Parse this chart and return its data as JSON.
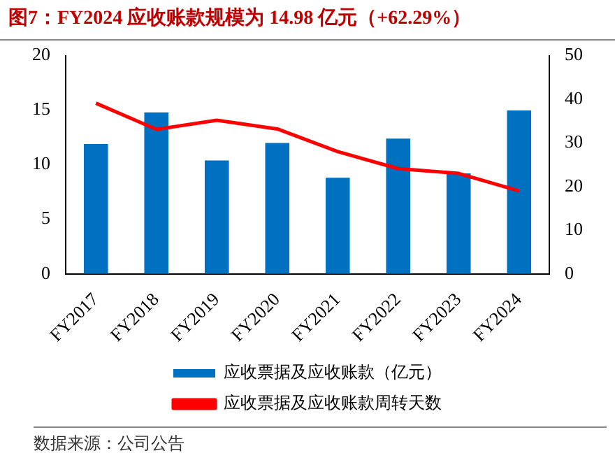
{
  "chart_data": {
    "type": "bar",
    "title": "图7：FY2024 应收账款规模为 14.98 亿元（+62.29%）",
    "categories": [
      "FY2017",
      "FY2018",
      "FY2019",
      "FY2020",
      "FY2021",
      "FY2022",
      "FY2023",
      "FY2024"
    ],
    "series": [
      {
        "name": "应收票据及应收账款（亿元）",
        "color": "#0070c0",
        "values": [
          11.9,
          14.8,
          10.4,
          12.0,
          8.8,
          12.4,
          9.2,
          14.98
        ]
      },
      {
        "name": "应收票据及应收账款周转天数",
        "type": "line",
        "axis": "y2",
        "color": "#ff0000",
        "values": [
          39.1,
          33.1,
          35.2,
          33.2,
          28.0,
          24.1,
          23.0,
          19.0
        ]
      }
    ],
    "ylim": [
      0,
      20
    ],
    "yticks": [
      0,
      5,
      10,
      15,
      20
    ],
    "y2lim": [
      0,
      50
    ],
    "y2ticks": [
      0,
      10,
      20,
      30,
      40,
      50
    ],
    "grid": false,
    "legend": "bottom",
    "marker": "none",
    "line_style": "solid",
    "annotations": [
      "数据来源：公司公告"
    ]
  }
}
